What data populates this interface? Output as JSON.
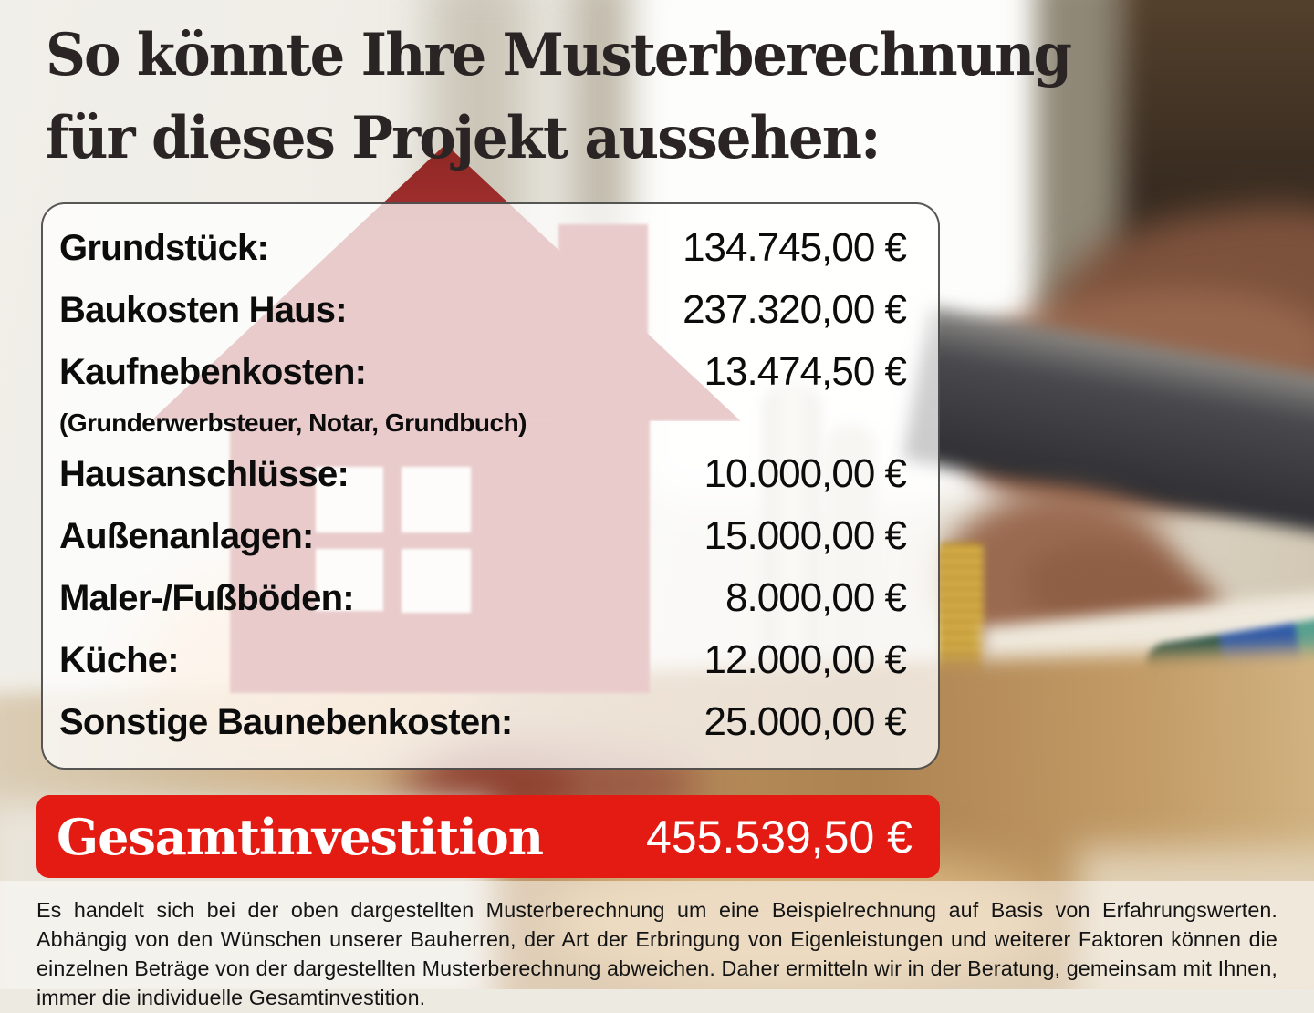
{
  "title": {
    "line1": "So könnte Ihre Musterberechnung",
    "line2": "für dieses Projekt aussehen:"
  },
  "table": {
    "rows": [
      {
        "label": "Grundstück:",
        "value": "134.745,00 €"
      },
      {
        "label": "Baukosten Haus:",
        "value": "237.320,00 €"
      },
      {
        "label": "Kaufnebenkosten:",
        "value": "13.474,50 €",
        "sublabel": "(Grunderwerbsteuer, Notar, Grundbuch)"
      },
      {
        "label": "Hausanschlüsse:",
        "value": "10.000,00 €"
      },
      {
        "label": "Außenanlagen:",
        "value": "15.000,00 €"
      },
      {
        "label": "Maler-/Fußböden:",
        "value": "8.000,00 €"
      },
      {
        "label": "Küche:",
        "value": "12.000,00 €"
      },
      {
        "label": "Sonstige Baunebenkosten:",
        "value": "25.000,00 €"
      }
    ]
  },
  "total": {
    "label": "Gesamtinvestition",
    "value": "455.539,50 €"
  },
  "disclaimer": "Es handelt sich bei der oben dargestellten Musterberechnung um eine Beispielrechnung auf Basis von Erfahrungswerten. Abhängig von den Wünschen unserer Bauherren, der Art der Erbringung von Eigenleistungen und weiterer Faktoren können die einzelnen Beträge von der dargestellten Musterberechnung abweichen. Daher ermitteln wir in der Beratung, gemeinsam mit Ihnen, immer die individuelle Gesamtinvestition.",
  "colors": {
    "accent_red": "#e31b13",
    "house_red": "#a83334",
    "title_text": "#2a2524"
  }
}
